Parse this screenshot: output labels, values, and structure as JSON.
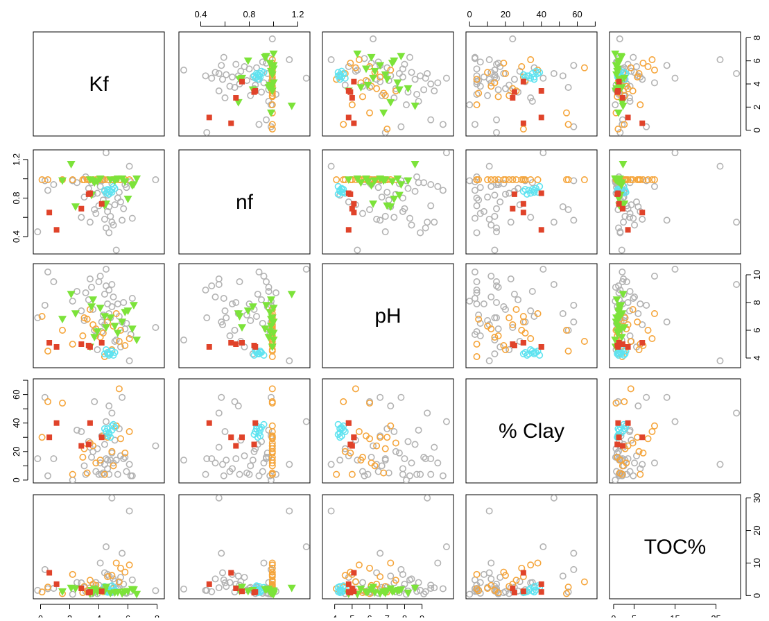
{
  "chart_data": {
    "type": "scatter",
    "variables": [
      "Kf",
      "nf",
      "pH",
      "% Clay",
      "TOC%"
    ],
    "ranges": {
      "Kf": [
        -0.5,
        8.5
      ],
      "nf": [
        0.22,
        1.3
      ],
      "pH": [
        3.3,
        10.8
      ],
      "% Clay": [
        -2,
        71
      ],
      "TOC%": [
        -1,
        31
      ]
    },
    "ticks": {
      "Kf": [
        0,
        2,
        4,
        6,
        8
      ],
      "nf": [
        0.4,
        0.8,
        1.2
      ],
      "nf_minor": [
        0.6,
        1.0
      ],
      "pH": [
        4,
        6,
        8,
        10
      ],
      "pH_bottom": [
        4,
        5,
        6,
        7,
        8,
        9
      ],
      "% Clay": [
        0,
        20,
        40,
        60
      ],
      "% Clay_minor": [
        10,
        30,
        50,
        70
      ],
      "TOC%": [
        0,
        10,
        20,
        30
      ],
      "TOC%_bottom": [
        0,
        5,
        15,
        25
      ]
    },
    "colors": {
      "grey": "#b3b3b3",
      "orange": "#f5a53b",
      "cyan": "#5fe3f0",
      "green": "#7ce33a",
      "red": "#e0432a"
    },
    "series": [
      {
        "color": "grey",
        "marker": "open-circle",
        "points": [
          [
            7.9,
            0.99,
            6.2,
            24,
            1.5
          ],
          [
            4.5,
            1.27,
            10.4,
            41,
            15
          ],
          [
            5.6,
            0.57,
            6.6,
            58,
            13
          ],
          [
            4.9,
            0.55,
            9.3,
            47,
            30
          ],
          [
            5.2,
            0.26,
            5.3,
            14,
            2
          ],
          [
            4.1,
            0.92,
            9.9,
            12,
            10
          ],
          [
            4.4,
            0.87,
            8.6,
            25,
            2.5
          ],
          [
            4.7,
            0.71,
            7.2,
            52,
            6
          ],
          [
            6.1,
            1.13,
            3.8,
            11,
            26
          ],
          [
            2.5,
            0.96,
            8.8,
            35,
            4
          ],
          [
            5.3,
            0.8,
            7.9,
            4,
            2.2
          ],
          [
            4.2,
            0.98,
            6.6,
            31,
            1.8
          ],
          [
            3.8,
            0.64,
            5.6,
            6,
            4
          ],
          [
            5.5,
            0.76,
            4.8,
            17,
            5.6
          ],
          [
            3.6,
            0.84,
            7.5,
            20,
            1.2
          ],
          [
            4.6,
            0.66,
            7.9,
            8,
            6.5
          ],
          [
            5.8,
            0.94,
            6.1,
            16,
            0.8
          ],
          [
            4.0,
            0.72,
            9.5,
            4,
            3.2
          ],
          [
            3.3,
            0.9,
            8.2,
            27,
            1.4
          ],
          [
            4.8,
            0.61,
            6.9,
            14,
            2.8
          ],
          [
            6.2,
            0.97,
            5.7,
            3,
            1.3
          ],
          [
            5.0,
            0.52,
            8.4,
            12,
            5.1
          ],
          [
            3.9,
            0.85,
            4.6,
            22,
            0.6
          ],
          [
            4.3,
            0.78,
            7.1,
            5,
            1.7
          ],
          [
            5.7,
            0.69,
            8.0,
            15,
            3.5
          ],
          [
            4.4,
            0.58,
            6.4,
            11,
            7
          ],
          [
            0.9,
            0.94,
            9.5,
            15,
            2.2
          ],
          [
            3.1,
            1.02,
            8.7,
            4,
            1.3
          ],
          [
            4.9,
            0.95,
            7.7,
            19,
            0.9
          ],
          [
            3.7,
            0.68,
            6.0,
            55,
            1.1
          ],
          [
            2.2,
            0.98,
            8.1,
            0,
            0.4
          ],
          [
            4.5,
            0.49,
            9.2,
            15,
            1.2
          ],
          [
            3.0,
            0.81,
            6.7,
            10,
            2.5
          ],
          [
            5.1,
            0.73,
            5.2,
            28,
            4.3
          ],
          [
            4.7,
            0.44,
            8.9,
            4,
            1.6
          ],
          [
            0.5,
            0.88,
            10.2,
            3,
            2.1
          ],
          [
            3.5,
            0.96,
            9.1,
            16,
            0.5
          ],
          [
            2.8,
            0.6,
            7.4,
            34,
            3.9
          ],
          [
            4.2,
            0.99,
            5.9,
            4,
            1.5
          ],
          [
            5.4,
            0.86,
            7.0,
            36,
            2.6
          ],
          [
            -0.2,
            0.45,
            6.9,
            15,
            1.6
          ],
          [
            0.3,
            0.98,
            7.8,
            58,
            8
          ],
          [
            6.3,
            0.59,
            8.3,
            3,
            4.8
          ],
          [
            4.6,
            0.83,
            4.3,
            14,
            1.4
          ],
          [
            3.4,
            0.55,
            9.7,
            23,
            2.4
          ],
          [
            5.9,
            0.91,
            6.5,
            6,
            0.7
          ]
        ]
      },
      {
        "color": "orange",
        "marker": "open-circle",
        "points": [
          [
            4.3,
            0.99,
            5.8,
            31,
            1.2
          ],
          [
            3.6,
            0.99,
            6.4,
            24,
            3.5
          ],
          [
            5.2,
            0.99,
            7.2,
            38,
            10
          ],
          [
            4.9,
            0.99,
            4.6,
            20,
            6.2
          ],
          [
            3.0,
            0.99,
            6.9,
            22,
            2.8
          ],
          [
            5.5,
            0.99,
            6.0,
            29,
            8.4
          ],
          [
            4.1,
            0.99,
            5.5,
            14,
            1.6
          ],
          [
            3.4,
            0.99,
            7.5,
            26,
            4.7
          ],
          [
            5.0,
            0.99,
            6.3,
            10,
            2.2
          ],
          [
            6.1,
            0.99,
            5.4,
            34,
            9.4
          ],
          [
            2.2,
            0.99,
            5.0,
            4,
            6.5
          ],
          [
            4.6,
            0.99,
            6.6,
            30,
            5.8
          ],
          [
            5.8,
            0.99,
            4.9,
            19,
            7.2
          ],
          [
            3.8,
            0.99,
            6.1,
            12,
            3.1
          ],
          [
            0.1,
            0.99,
            7.0,
            30,
            1.1
          ],
          [
            1.5,
            0.99,
            6.0,
            54,
            0.6
          ],
          [
            5.4,
            0.99,
            5.2,
            64,
            4.2
          ],
          [
            4.4,
            0.99,
            4.1,
            4,
            2.1
          ],
          [
            2.9,
            0.99,
            5.6,
            16,
            0.9
          ],
          [
            3.2,
            0.99,
            6.8,
            5,
            1.5
          ],
          [
            0.5,
            0.99,
            4.5,
            55,
            2.6
          ]
        ]
      },
      {
        "color": "cyan",
        "marker": "open-circle",
        "points": [
          [
            4.7,
            0.88,
            4.3,
            33,
            1.8
          ],
          [
            4.6,
            0.86,
            4.4,
            36,
            1.1
          ],
          [
            5.0,
            0.92,
            4.2,
            39,
            2.5
          ],
          [
            4.9,
            0.89,
            4.5,
            35,
            1.4
          ],
          [
            4.8,
            0.87,
            4.3,
            30,
            0.9
          ],
          [
            4.5,
            0.85,
            4.6,
            34,
            2.2
          ],
          [
            5.1,
            0.9,
            4.4,
            37,
            1.7
          ],
          [
            4.7,
            0.84,
            4.2,
            32,
            1.2
          ],
          [
            4.4,
            0.88,
            4.3,
            36,
            2.8
          ],
          [
            4.9,
            0.86,
            4.5,
            38,
            3.0
          ],
          [
            4.6,
            0.89,
            4.4,
            31,
            1.0
          ]
        ]
      },
      {
        "color": "green",
        "marker": "filled-triangle",
        "points": [
          [
            1.5,
            0.98,
            6.8,
            null,
            1.2
          ],
          [
            2.4,
            0.71,
            7.2,
            null,
            2.1
          ],
          [
            3.6,
            0.98,
            8.2,
            null,
            0.8
          ],
          [
            4.1,
            1.0,
            7.6,
            null,
            1.5
          ],
          [
            4.5,
            0.74,
            6.2,
            null,
            2.6
          ],
          [
            3.9,
            0.97,
            5.9,
            null,
            1.1
          ],
          [
            5.6,
            1.0,
            6.6,
            null,
            0.6
          ],
          [
            6.4,
            0.94,
            7.8,
            null,
            1.8
          ],
          [
            6.6,
            1.0,
            5.3,
            null,
            0.4
          ],
          [
            4.4,
            0.72,
            7.0,
            null,
            1.4
          ],
          [
            2.1,
            1.15,
            8.6,
            null,
            2.3
          ],
          [
            5.1,
            0.98,
            6.3,
            null,
            0.9
          ],
          [
            6.0,
            0.79,
            7.4,
            null,
            1.3
          ],
          [
            3.7,
            0.96,
            5.5,
            null,
            2.0
          ],
          [
            4.8,
            0.99,
            6.9,
            null,
            0.7
          ],
          [
            3.5,
            0.83,
            7.7,
            null,
            1.6
          ],
          [
            5.3,
            1.0,
            5.8,
            null,
            1.0
          ],
          [
            6.3,
            0.93,
            6.1,
            null,
            1.9
          ],
          [
            3.4,
            0.99,
            4.8,
            null,
            0.5
          ],
          [
            5.8,
            0.97,
            7.3,
            null,
            1.2
          ]
        ]
      },
      {
        "color": "red",
        "marker": "filled-square",
        "points": [
          [
            0.6,
            0.65,
            5.1,
            30,
            7
          ],
          [
            1.1,
            0.47,
            4.8,
            40,
            3.5
          ],
          [
            2.8,
            0.69,
            5.0,
            24,
            2.2
          ],
          [
            3.3,
            0.84,
            4.9,
            25,
            0.9
          ],
          [
            4.2,
            0.74,
            5.1,
            30,
            1.3
          ],
          [
            3.4,
            0.85,
            4.8,
            40,
            1.1
          ]
        ]
      }
    ]
  }
}
